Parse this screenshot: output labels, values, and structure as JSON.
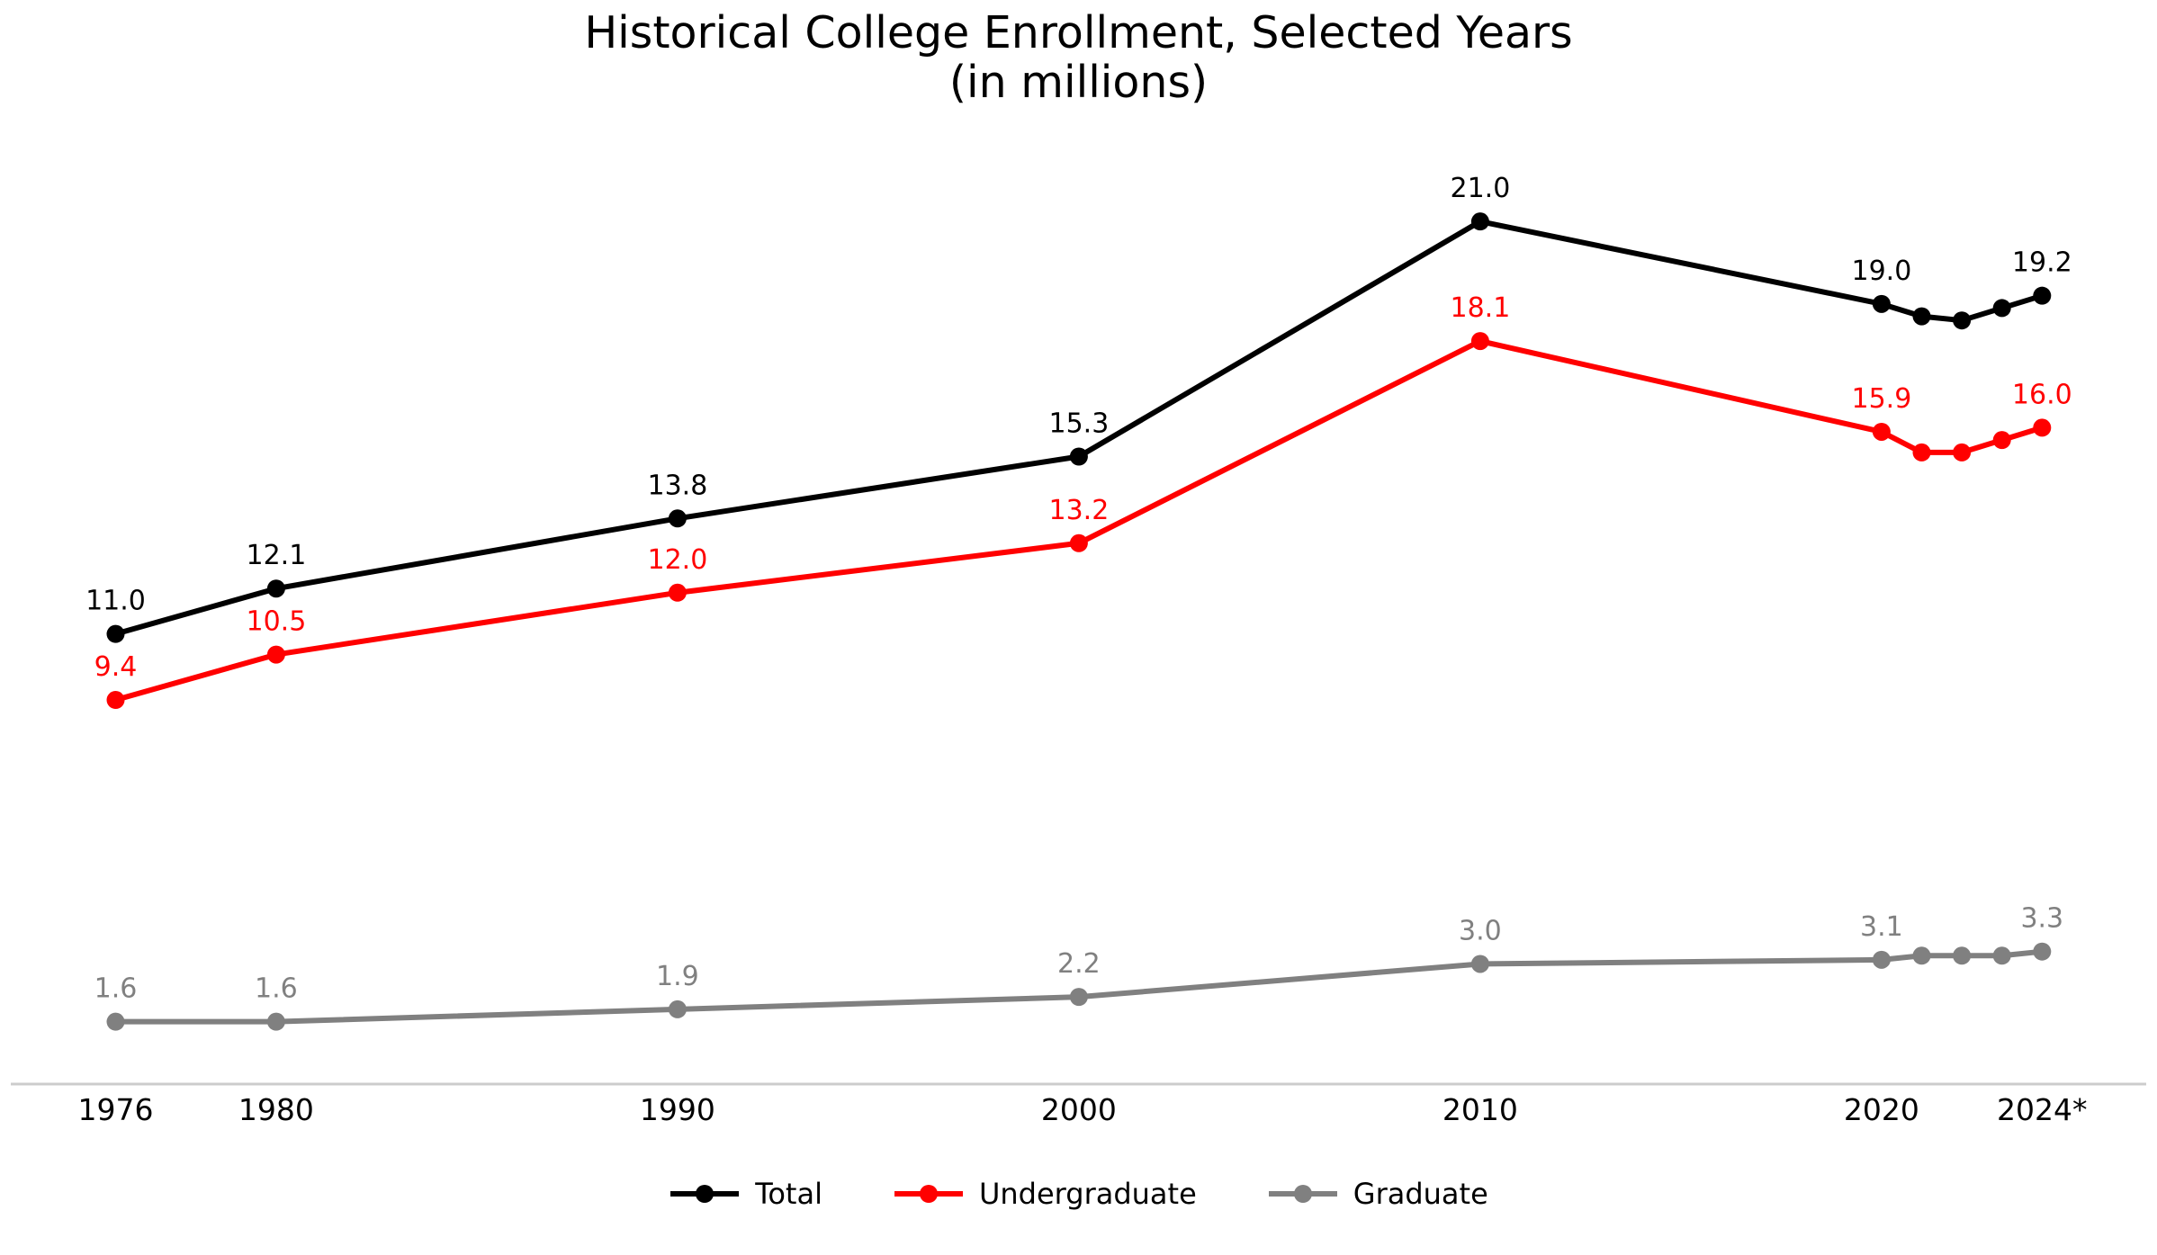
{
  "chart_data": {
    "type": "line",
    "title": "Historical College Enrollment, Selected Years",
    "subtitle": "(in millions)",
    "x_years": [
      1976,
      1980,
      1990,
      2000,
      2010,
      2020,
      2021,
      2022,
      2023,
      2024
    ],
    "x_tick_labels": [
      {
        "year": 1976,
        "label": "1976"
      },
      {
        "year": 1980,
        "label": "1980"
      },
      {
        "year": 1990,
        "label": "1990"
      },
      {
        "year": 2000,
        "label": "2000"
      },
      {
        "year": 2010,
        "label": "2010"
      },
      {
        "year": 2020,
        "label": "2020"
      },
      {
        "year": 2024,
        "label": "2024*"
      }
    ],
    "series": [
      {
        "name": "Total",
        "color": "#000000",
        "values": [
          11.0,
          12.1,
          13.8,
          15.3,
          21.0,
          19.0,
          18.7,
          18.6,
          18.9,
          19.2
        ],
        "point_labels": [
          "11.0",
          "12.1",
          "13.8",
          "15.3",
          "21.0",
          "19.0",
          null,
          null,
          null,
          "19.2"
        ]
      },
      {
        "name": "Undergraduate",
        "color": "#ff0000",
        "values": [
          9.4,
          10.5,
          12.0,
          13.2,
          18.1,
          15.9,
          15.4,
          15.4,
          15.7,
          16.0
        ],
        "point_labels": [
          "9.4",
          "10.5",
          "12.0",
          "13.2",
          "18.1",
          "15.9",
          null,
          null,
          null,
          "16.0"
        ]
      },
      {
        "name": "Graduate",
        "color": "#808080",
        "values": [
          1.6,
          1.6,
          1.9,
          2.2,
          3.0,
          3.1,
          3.2,
          3.2,
          3.2,
          3.3
        ],
        "point_labels": [
          "1.6",
          "1.6",
          "1.9",
          "2.2",
          "3.0",
          "3.1",
          null,
          null,
          null,
          "3.3"
        ]
      }
    ],
    "legend": {
      "position": "bottom-center",
      "entries": [
        "Total",
        "Undergraduate",
        "Graduate"
      ]
    },
    "axes": {
      "y_axis_visible": false,
      "grid": false,
      "ylim": [
        0,
        23
      ],
      "x_type": "linear-year",
      "baseline_color": "#cccccc"
    }
  }
}
